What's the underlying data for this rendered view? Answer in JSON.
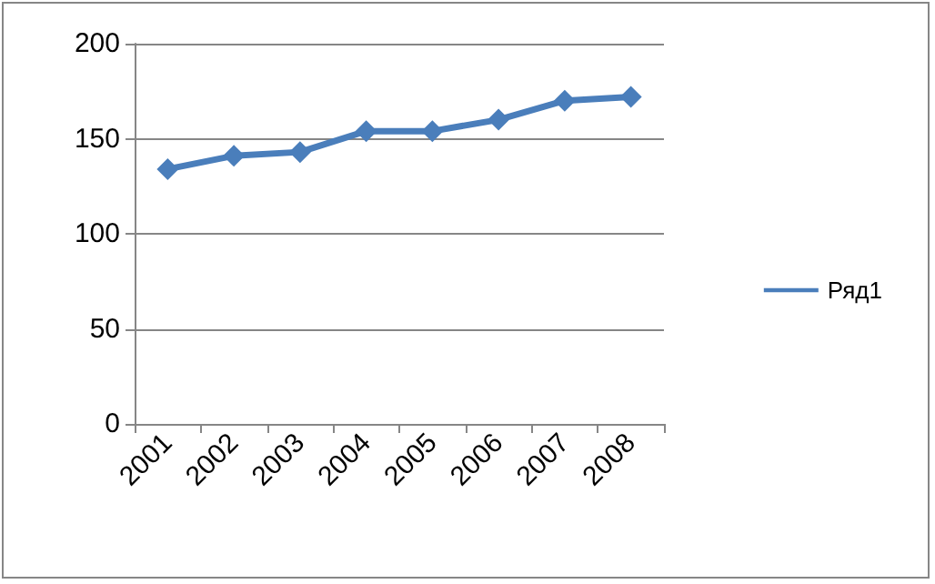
{
  "chart_data": {
    "type": "line",
    "categories": [
      "2001",
      "2002",
      "2003",
      "2004",
      "2005",
      "2006",
      "2007",
      "2008"
    ],
    "series": [
      {
        "name": "Ряд1",
        "color": "#4a7ebb",
        "values": [
          134,
          141,
          143,
          154,
          154,
          160,
          170,
          172
        ]
      }
    ],
    "ylim": [
      0,
      200
    ],
    "yticks": [
      0,
      50,
      100,
      150,
      200
    ],
    "grid": "y",
    "legend": "right",
    "marker": "diamond",
    "line_style": "solid"
  }
}
